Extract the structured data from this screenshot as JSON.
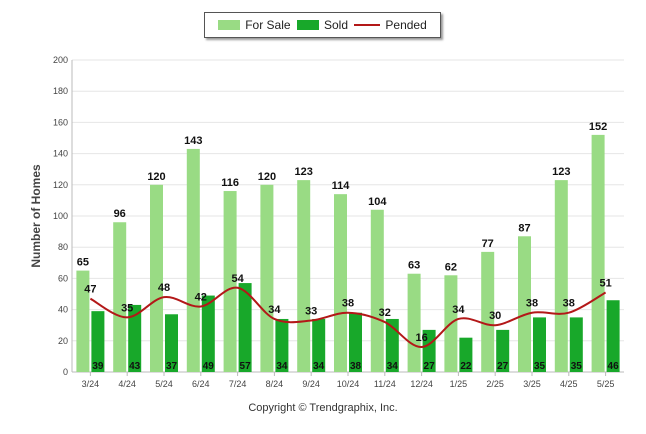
{
  "legend": {
    "for_sale": "For Sale",
    "sold": "Sold",
    "pended": "Pended"
  },
  "footer": "Copyright © Trendgraphix, Inc.",
  "colors": {
    "for_sale": "#99db84",
    "sold": "#18a82a",
    "pended": "#b31818"
  },
  "chart_data": {
    "type": "bar",
    "ylabel": "Number of Homes",
    "xlabel": "",
    "ylim": [
      0,
      200
    ],
    "yticks": [
      0,
      20,
      40,
      60,
      80,
      100,
      120,
      140,
      160,
      180,
      200
    ],
    "grid": true,
    "legend_position": "top-center",
    "categories": [
      "3/24",
      "4/24",
      "5/24",
      "6/24",
      "7/24",
      "8/24",
      "9/24",
      "10/24",
      "11/24",
      "12/24",
      "1/25",
      "2/25",
      "3/25",
      "4/25",
      "5/25"
    ],
    "series": [
      {
        "name": "For Sale",
        "kind": "bar",
        "values": [
          65,
          96,
          120,
          143,
          116,
          120,
          123,
          114,
          104,
          63,
          62,
          77,
          87,
          123,
          152
        ]
      },
      {
        "name": "Sold",
        "kind": "bar",
        "values": [
          39,
          43,
          37,
          49,
          57,
          34,
          34,
          38,
          34,
          27,
          22,
          27,
          35,
          35,
          46
        ]
      },
      {
        "name": "Pended",
        "kind": "line",
        "values": [
          47,
          35,
          48,
          42,
          54,
          34,
          33,
          38,
          32,
          16,
          34,
          30,
          38,
          38,
          51
        ]
      }
    ]
  }
}
